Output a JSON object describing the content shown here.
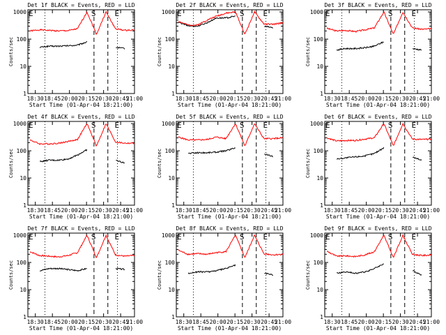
{
  "figure": {
    "colors": {
      "events": "#000000",
      "lld": "#ff0000",
      "axis": "#000000",
      "background": "#ffffff"
    },
    "time_axis": {
      "ticks": [
        "18:30",
        "18:45",
        "20:00",
        "20:15",
        "20:30",
        "20:45",
        "21:00"
      ],
      "xlabel": "Start Time (01-Apr-04 18:21:00)"
    },
    "count_axis": {
      "ylabel": "Counts/sec",
      "scale": "log",
      "ticks": [
        "1",
        "10",
        "100",
        "1000"
      ],
      "ylim": [
        1,
        1200
      ]
    }
  },
  "chart_data": [
    {
      "type": "line",
      "title": "Det 1f BLACK = Events, RED = LLD",
      "markers": {
        "left": "E",
        "mid": "S",
        "right": "E"
      },
      "series": [
        {
          "color": "#000000",
          "values": [
            null,
            50,
            55,
            55,
            57,
            60,
            80,
            null,
            null,
            50,
            45,
            null
          ]
        },
        {
          "color": "#ff0000",
          "values": [
            200,
            220,
            210,
            200,
            205,
            240,
            1000,
            150,
            1000,
            240,
            210,
            220
          ]
        }
      ]
    },
    {
      "type": "line",
      "title": "Det 2f BLACK = Events, RED = LLD",
      "markers": {
        "left": "E",
        "mid": "S",
        "right": "E"
      },
      "series": [
        {
          "color": "#000000",
          "values": [
            420,
            310,
            300,
            400,
            600,
            600,
            700,
            null,
            null,
            300,
            260,
            null
          ]
        },
        {
          "color": "#ff0000",
          "values": [
            450,
            330,
            330,
            500,
            700,
            900,
            1000,
            150,
            1000,
            360,
            350,
            400
          ]
        }
      ]
    },
    {
      "type": "line",
      "title": "Det 3f BLACK = Events, RED = LLD",
      "markers": {
        "left": "E",
        "mid": "S",
        "right": "E"
      },
      "series": [
        {
          "color": "#000000",
          "values": [
            null,
            40,
            45,
            45,
            48,
            55,
            80,
            null,
            null,
            45,
            40,
            null
          ]
        },
        {
          "color": "#ff0000",
          "values": [
            250,
            200,
            210,
            190,
            220,
            260,
            1000,
            150,
            1000,
            260,
            230,
            240
          ]
        }
      ]
    },
    {
      "type": "line",
      "title": "Det 4f BLACK = Events, RED = LLD",
      "markers": {
        "left": "E",
        "mid": "S",
        "right": "E"
      },
      "series": [
        {
          "color": "#000000",
          "values": [
            null,
            40,
            45,
            45,
            50,
            70,
            110,
            null,
            null,
            45,
            35,
            null
          ]
        },
        {
          "color": "#ff0000",
          "values": [
            250,
            180,
            180,
            190,
            220,
            260,
            1000,
            150,
            1000,
            210,
            190,
            190
          ]
        }
      ]
    },
    {
      "type": "line",
      "title": "Det 5f BLACK = Events, RED = LLD",
      "markers": {
        "left": "E",
        "mid": "S",
        "right": "E"
      },
      "series": [
        {
          "color": "#000000",
          "values": [
            null,
            80,
            85,
            85,
            90,
            100,
            130,
            null,
            null,
            80,
            60,
            null
          ]
        },
        {
          "color": "#ff0000",
          "values": [
            320,
            250,
            250,
            260,
            320,
            280,
            1000,
            150,
            1000,
            280,
            280,
            300
          ]
        }
      ]
    },
    {
      "type": "line",
      "title": "Det 6f BLACK = Events, RED = LLD",
      "markers": {
        "left": "E",
        "mid": "S",
        "right": "E"
      },
      "series": [
        {
          "color": "#000000",
          "values": [
            null,
            50,
            55,
            60,
            65,
            80,
            130,
            null,
            null,
            60,
            45,
            null
          ]
        },
        {
          "color": "#ff0000",
          "values": [
            300,
            230,
            240,
            240,
            270,
            300,
            1000,
            150,
            1000,
            270,
            260,
            270
          ]
        }
      ]
    },
    {
      "type": "line",
      "title": "Det 7f BLACK = Events, RED = LLD",
      "markers": {
        "left": "E",
        "mid": "S",
        "right": "E"
      },
      "series": [
        {
          "color": "#000000",
          "values": [
            null,
            50,
            60,
            60,
            55,
            50,
            60,
            null,
            null,
            60,
            55,
            null
          ]
        },
        {
          "color": "#ff0000",
          "values": [
            250,
            180,
            170,
            160,
            180,
            230,
            1000,
            150,
            1000,
            190,
            170,
            180
          ]
        }
      ]
    },
    {
      "type": "line",
      "title": "Det 8f BLACK = Events, RED = LLD",
      "markers": {
        "left": "E",
        "mid": "S",
        "right": "E"
      },
      "series": [
        {
          "color": "#000000",
          "values": [
            null,
            40,
            45,
            45,
            50,
            60,
            80,
            null,
            null,
            40,
            35,
            null
          ]
        },
        {
          "color": "#ff0000",
          "values": [
            280,
            200,
            210,
            200,
            230,
            250,
            1000,
            150,
            1000,
            210,
            190,
            200
          ]
        }
      ]
    },
    {
      "type": "line",
      "title": "Det 9f BLACK = Events, RED = LLD",
      "markers": {
        "left": "E",
        "mid": "S",
        "right": "E"
      },
      "series": [
        {
          "color": "#000000",
          "values": [
            null,
            40,
            45,
            40,
            45,
            60,
            90,
            null,
            null,
            50,
            35,
            null
          ]
        },
        {
          "color": "#ff0000",
          "values": [
            260,
            170,
            175,
            165,
            190,
            250,
            1000,
            150,
            1000,
            200,
            180,
            190
          ]
        }
      ]
    }
  ]
}
